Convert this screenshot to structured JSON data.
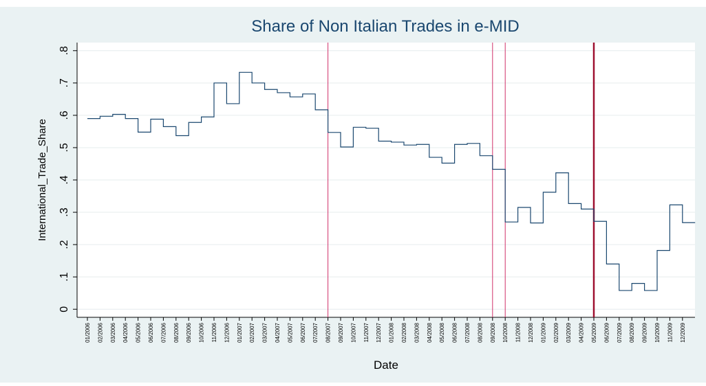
{
  "chart_data": {
    "type": "line",
    "title": "Share of Non Italian Trades in e-MID",
    "x_label": "Date",
    "y_label": "International_Trade_Share",
    "categories": [
      "01/2006",
      "02/2006",
      "03/2006",
      "04/2006",
      "05/2006",
      "06/2006",
      "07/2006",
      "08/2006",
      "09/2006",
      "10/2006",
      "11/2006",
      "12/2006",
      "01/2007",
      "02/2007",
      "03/2007",
      "04/2007",
      "05/2007",
      "06/2007",
      "07/2007",
      "08/2007",
      "09/2007",
      "10/2007",
      "11/2007",
      "12/2007",
      "01/2008",
      "02/2008",
      "03/2008",
      "04/2008",
      "05/2008",
      "06/2008",
      "07/2008",
      "08/2008",
      "09/2008",
      "10/2008",
      "11/2008",
      "12/2008",
      "01/2009",
      "02/2009",
      "03/2009",
      "04/2009",
      "05/2009",
      "06/2009",
      "07/2009",
      "08/2009",
      "09/2009",
      "10/2009",
      "11/2009",
      "12/2009"
    ],
    "series": [
      {
        "name": "International_Trade_Share",
        "color": "#1a476f",
        "values": [
          0.59,
          0.597,
          0.603,
          0.59,
          0.548,
          0.588,
          0.565,
          0.537,
          0.578,
          0.595,
          0.7,
          0.636,
          0.733,
          0.7,
          0.68,
          0.67,
          0.657,
          0.666,
          0.617,
          0.547,
          0.502,
          0.563,
          0.56,
          0.52,
          0.517,
          0.508,
          0.51,
          0.47,
          0.452,
          0.51,
          0.513,
          0.475,
          0.433,
          0.27,
          0.315,
          0.267,
          0.362,
          0.422,
          0.327,
          0.31,
          0.272,
          0.14,
          0.058,
          0.08,
          0.058,
          0.182,
          0.323,
          0.268
        ]
      }
    ],
    "step": true,
    "reference_lines": [
      {
        "x": "08/2007",
        "color": "#d0306a"
      },
      {
        "x": "09/2008",
        "color": "#d0306a"
      },
      {
        "x": "10/2008",
        "color": "#d0306a"
      },
      {
        "x": "05/2009",
        "color": "#9e1030"
      }
    ],
    "ylim": [
      -0.025,
      0.825
    ],
    "yticks": [
      {
        "value": 0,
        "label": "0"
      },
      {
        "value": 0.1,
        "label": ".1"
      },
      {
        "value": 0.2,
        "label": ".2"
      },
      {
        "value": 0.3,
        "label": ".3"
      },
      {
        "value": 0.4,
        "label": ".4"
      },
      {
        "value": 0.5,
        "label": ".5"
      },
      {
        "value": 0.6,
        "label": ".6"
      },
      {
        "value": 0.7,
        "label": ".7"
      },
      {
        "value": 0.8,
        "label": ".8"
      }
    ],
    "grid": true
  }
}
